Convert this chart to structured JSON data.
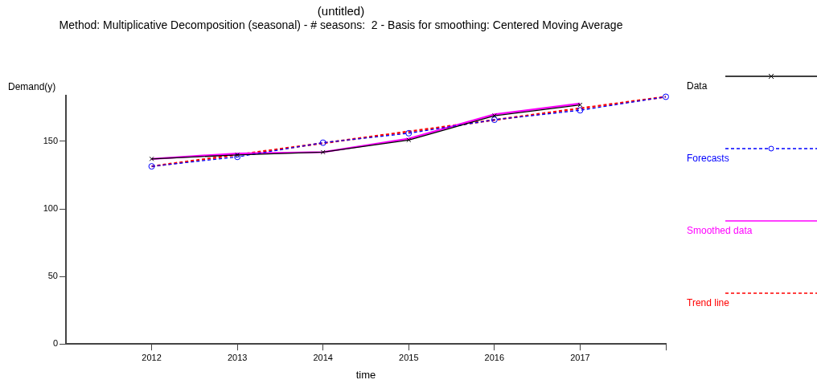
{
  "chart_data": {
    "type": "line",
    "title": "(untitled)",
    "subtitle": "Method: Multiplicative Decomposition (seasonal) - # seasons:  2 - Basis for smoothing: Centered Moving Average",
    "xlabel": "time",
    "ylabel": "Demand(y)",
    "x": [
      2012,
      2013,
      2014,
      2015,
      2016,
      2017
    ],
    "xlim": [
      2011,
      2018
    ],
    "xticks": [
      2012,
      2013,
      2014,
      2015,
      2016,
      2017,
      {
        "value": 2018,
        "label": null
      }
    ],
    "ylim": [
      0,
      184
    ],
    "yticks": [
      0,
      50,
      100,
      150
    ],
    "grid": false,
    "legend": "right",
    "series": [
      {
        "name": "Data",
        "color": "#000000",
        "marker": "cross",
        "line_style": "solid",
        "values": [
          137,
          140,
          142,
          151,
          169,
          177
        ]
      },
      {
        "name": "Forecasts",
        "color": "#0000ff",
        "marker": "circle",
        "line_style": "dashed",
        "x": [
          2012,
          2013,
          2014,
          2015,
          2016,
          2017,
          2018
        ],
        "values": [
          131.5,
          138.5,
          149,
          156,
          166,
          173,
          183
        ]
      },
      {
        "name": "Smoothed data",
        "color": "#ff00ff",
        "marker": "none",
        "line_style": "solid",
        "values": [
          137,
          141,
          142,
          152,
          170,
          178
        ]
      },
      {
        "name": "Trend line",
        "color": "#ff0000",
        "marker": "none",
        "line_style": "dashed",
        "x": [
          2012,
          2018
        ],
        "values": [
          131.5,
          183
        ]
      }
    ]
  }
}
